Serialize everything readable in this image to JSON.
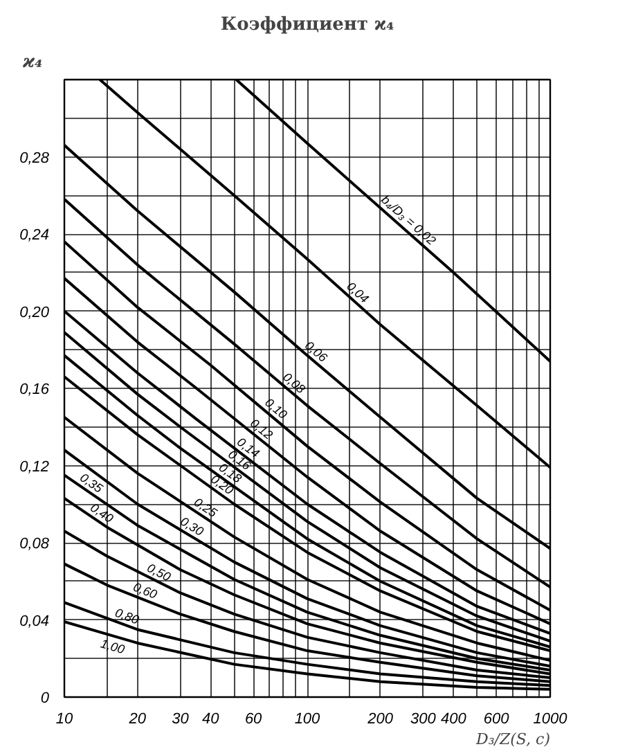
{
  "chart_data": {
    "type": "line",
    "title": "Коэффициент ϰ₄",
    "xlabel": "D₃/Z(S, c)",
    "ylabel": "ϰ₄",
    "log": "x",
    "grid": true,
    "line_style": "solid",
    "xlim": [
      10,
      1000
    ],
    "ylim": [
      0,
      0.32
    ],
    "xticks": [
      10,
      {
        "value": 15,
        "label": null
      },
      20,
      30,
      40,
      {
        "value": 50,
        "label": null
      },
      60,
      {
        "value": 70,
        "label": null
      },
      {
        "value": 80,
        "label": null
      },
      {
        "value": 90,
        "label": null
      },
      100,
      {
        "value": 150,
        "label": null
      },
      200,
      300,
      400,
      {
        "value": 500,
        "label": null
      },
      600,
      {
        "value": 700,
        "label": null
      },
      {
        "value": 800,
        "label": null
      },
      {
        "value": 900,
        "label": null
      },
      1000
    ],
    "yticks": [
      0,
      {
        "value": 0.02,
        "label": null
      },
      {
        "value": 0.04,
        "label": "0,04"
      },
      {
        "value": 0.06,
        "label": null
      },
      {
        "value": 0.08,
        "label": "0,08"
      },
      {
        "value": 0.1,
        "label": null
      },
      {
        "value": 0.12,
        "label": "0,12"
      },
      {
        "value": 0.14,
        "label": null
      },
      {
        "value": 0.16,
        "label": "0,16"
      },
      {
        "value": 0.18,
        "label": null
      },
      {
        "value": 0.2,
        "label": "0,20"
      },
      {
        "value": 0.22,
        "label": null
      },
      {
        "value": 0.24,
        "label": "0,24"
      },
      {
        "value": 0.26,
        "label": null
      },
      {
        "value": 0.28,
        "label": "0,28"
      },
      {
        "value": 0.3,
        "label": null
      }
    ],
    "series": [
      {
        "name": "b₄/D₃ = 0,02",
        "color": "#000000",
        "x": [
          51,
          100,
          400,
          1000
        ],
        "values": [
          0.32,
          0.287,
          0.22,
          0.174
        ]
      },
      {
        "name": "0,04",
        "color": "#000000",
        "x": [
          14,
          20,
          50,
          100,
          200,
          500,
          1000
        ],
        "values": [
          0.32,
          0.303,
          0.26,
          0.227,
          0.193,
          0.151,
          0.119
        ]
      },
      {
        "name": "0,06",
        "color": "#000000",
        "x": [
          10,
          20,
          50,
          100,
          200,
          500,
          1000
        ],
        "values": [
          0.286,
          0.252,
          0.21,
          0.177,
          0.145,
          0.103,
          0.077
        ]
      },
      {
        "name": "0,08",
        "color": "#000000",
        "x": [
          10,
          20,
          50,
          100,
          200,
          500,
          1000
        ],
        "values": [
          0.258,
          0.224,
          0.183,
          0.151,
          0.121,
          0.082,
          0.057
        ]
      },
      {
        "name": "0,10",
        "color": "#000000",
        "x": [
          10,
          20,
          40,
          100,
          200,
          500,
          1000
        ],
        "values": [
          0.236,
          0.202,
          0.172,
          0.13,
          0.101,
          0.066,
          0.045
        ]
      },
      {
        "name": "0,12",
        "color": "#000000",
        "x": [
          10,
          20,
          35,
          100,
          200,
          500,
          1000
        ],
        "values": [
          0.217,
          0.184,
          0.16,
          0.114,
          0.086,
          0.055,
          0.038
        ]
      },
      {
        "name": "0,14",
        "color": "#000000",
        "x": [
          10,
          20,
          35,
          100,
          200,
          500,
          1000
        ],
        "values": [
          0.2,
          0.168,
          0.144,
          0.1,
          0.075,
          0.047,
          0.033
        ]
      },
      {
        "name": "0,16",
        "color": "#000000",
        "x": [
          10,
          20,
          30,
          100,
          200,
          500,
          1000
        ],
        "values": [
          0.189,
          0.157,
          0.14,
          0.091,
          0.067,
          0.042,
          0.029
        ]
      },
      {
        "name": "0,18",
        "color": "#000000",
        "x": [
          10,
          20,
          30,
          100,
          200,
          500,
          1000
        ],
        "values": [
          0.177,
          0.146,
          0.129,
          0.082,
          0.06,
          0.037,
          0.026
        ]
      },
      {
        "name": "0,20",
        "color": "#000000",
        "x": [
          10,
          20,
          50,
          100,
          200,
          500,
          1000
        ],
        "values": [
          0.166,
          0.136,
          0.1,
          0.075,
          0.055,
          0.034,
          0.024
        ]
      },
      {
        "name": "0,25",
        "color": "#000000",
        "x": [
          10,
          20,
          50,
          100,
          200,
          500,
          1000
        ],
        "values": [
          0.145,
          0.116,
          0.083,
          0.061,
          0.044,
          0.028,
          0.019
        ]
      },
      {
        "name": "0,30",
        "color": "#000000",
        "x": [
          10,
          20,
          50,
          100,
          200,
          500,
          1000
        ],
        "values": [
          0.128,
          0.1,
          0.07,
          0.051,
          0.037,
          0.023,
          0.016
        ]
      },
      {
        "name": "0,35",
        "color": "#000000",
        "x": [
          10,
          20,
          50,
          100,
          200,
          500,
          1000
        ],
        "values": [
          0.115,
          0.089,
          0.061,
          0.044,
          0.032,
          0.02,
          0.014
        ]
      },
      {
        "name": "0,40",
        "color": "#000000",
        "x": [
          10,
          15,
          30,
          50,
          100,
          200,
          500,
          1000
        ],
        "values": [
          0.103,
          0.088,
          0.066,
          0.053,
          0.038,
          0.028,
          0.018,
          0.012
        ]
      },
      {
        "name": "0,50",
        "color": "#000000",
        "x": [
          10,
          15,
          30,
          50,
          100,
          200,
          500,
          1000
        ],
        "values": [
          0.086,
          0.073,
          0.054,
          0.043,
          0.031,
          0.023,
          0.014,
          0.01
        ]
      },
      {
        "name": "0,60",
        "color": "#000000",
        "x": [
          10,
          15,
          30,
          50,
          100,
          200,
          500,
          1000
        ],
        "values": [
          0.069,
          0.058,
          0.043,
          0.034,
          0.024,
          0.018,
          0.011,
          0.008
        ]
      },
      {
        "name": "0,80",
        "color": "#000000",
        "x": [
          10,
          20,
          50,
          100,
          200,
          500,
          1000
        ],
        "values": [
          0.049,
          0.035,
          0.023,
          0.017,
          0.012,
          0.008,
          0.006
        ]
      },
      {
        "name": "1,00",
        "color": "#000000",
        "x": [
          10,
          20,
          50,
          100,
          200,
          500,
          1000
        ],
        "values": [
          0.039,
          0.028,
          0.017,
          0.012,
          0.008,
          0.005,
          0.004
        ]
      }
    ]
  }
}
